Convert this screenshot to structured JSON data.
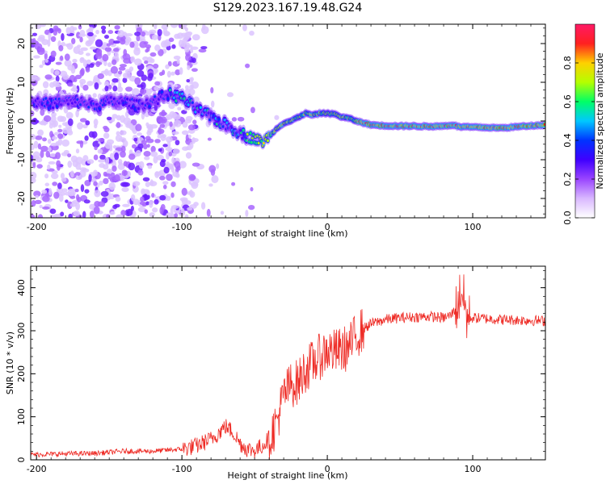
{
  "figure_title": "S129.2023.167.19.48.G24",
  "chart_data": [
    {
      "type": "heatmap",
      "xlabel": "Height of straight line (km)",
      "ylabel": "Frequency (Hz)",
      "xlim": [
        -204,
        150
      ],
      "ylim": [
        -25,
        25
      ],
      "x_ticks": [
        -200,
        -100,
        0,
        100
      ],
      "y_ticks": [
        -20,
        -10,
        0,
        10,
        20
      ],
      "colorbar": {
        "label": "Normalized spectral amplitude",
        "range": [
          0,
          1
        ],
        "ticks": [
          0.0,
          0.2,
          0.4,
          0.6,
          0.8
        ],
        "colormap": [
          "#ffffff",
          "#d9b8ff",
          "#9a45ff",
          "#3f00ff",
          "#0033ff",
          "#00c8ff",
          "#00ff66",
          "#b4ff00",
          "#ffd000",
          "#ff2020",
          "#ff1a66"
        ]
      },
      "frequency_track": {
        "description": "dominant frequency trace (Hz) vs height (km)",
        "x": [
          -204,
          -190,
          -180,
          -170,
          -160,
          -150,
          -140,
          -130,
          -120,
          -110,
          -100,
          -90,
          -80,
          -70,
          -60,
          -55,
          -50,
          -45,
          -40,
          -35,
          -30,
          -25,
          -20,
          -15,
          -10,
          -5,
          0,
          5,
          10,
          15,
          20,
          30,
          40,
          50,
          60,
          70,
          80,
          87,
          90,
          95,
          100,
          110,
          120,
          130,
          140,
          150
        ],
        "y": [
          5,
          4.5,
          5,
          5,
          4,
          5,
          5,
          4,
          5,
          7,
          6,
          3,
          1,
          -1,
          -3,
          -4,
          -4.5,
          -5.5,
          -4,
          -2,
          -0.5,
          0,
          1,
          2,
          1.5,
          2,
          2,
          1.8,
          1,
          0.7,
          0,
          -1,
          -1.2,
          -1.3,
          -1.3,
          -1.4,
          -1.3,
          -1,
          -1.5,
          -1.5,
          -1.6,
          -1.7,
          -1.8,
          -1.5,
          -1.2,
          -1
        ]
      }
    },
    {
      "type": "line",
      "xlabel": "Height of straight line (km)",
      "ylabel": "SNR (10 * v/v)",
      "xlim": [
        -204,
        150
      ],
      "ylim": [
        0,
        450
      ],
      "x_ticks": [
        -200,
        -100,
        0,
        100
      ],
      "y_ticks": [
        0,
        100,
        200,
        300,
        400
      ],
      "series": [
        {
          "color": "#ee2a24",
          "x": [
            -204,
            -180,
            -160,
            -140,
            -120,
            -100,
            -90,
            -80,
            -75,
            -70,
            -65,
            -60,
            -55,
            -50,
            -45,
            -40,
            -35,
            -30,
            -25,
            -20,
            -15,
            -10,
            -5,
            0,
            5,
            10,
            15,
            20,
            25,
            30,
            40,
            50,
            60,
            70,
            80,
            85,
            90,
            92,
            94,
            96,
            100,
            110,
            120,
            130,
            140,
            150
          ],
          "y": [
            12,
            14,
            15,
            20,
            20,
            25,
            32,
            48,
            62,
            78,
            65,
            38,
            25,
            22,
            32,
            50,
            85,
            150,
            175,
            180,
            210,
            225,
            240,
            255,
            250,
            255,
            262,
            290,
            305,
            316,
            326,
            330,
            332,
            333,
            330,
            336,
            360,
            400,
            370,
            328,
            330,
            328,
            326,
            325,
            324,
            323
          ]
        }
      ]
    }
  ]
}
